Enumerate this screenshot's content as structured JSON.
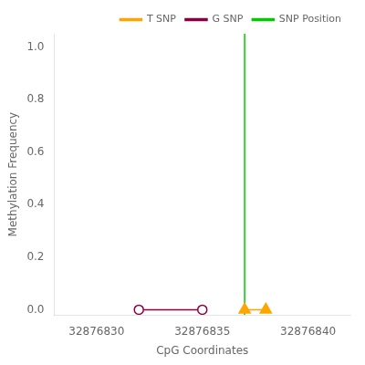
{
  "chart_data": {
    "type": "line",
    "xlabel": "CpG Coordinates",
    "ylabel": "Methylation Frequency",
    "xlim": [
      32876828,
      32876842
    ],
    "ylim": [
      -0.02,
      1.05
    ],
    "xticks": [
      32876830,
      32876835,
      32876840
    ],
    "yticks": [
      {
        "value": 0.0,
        "label": "0.0"
      },
      0.2,
      0.4,
      0.6,
      0.8,
      {
        "value": 1.0,
        "label": "1.0"
      }
    ],
    "grid": false,
    "legend": "upper right",
    "series": [
      {
        "name": "T SNP",
        "color": "#FFA500",
        "marker": "triangle",
        "x": [
          32876837,
          32876838
        ],
        "values": [
          0.0,
          0.0
        ]
      },
      {
        "name": "G SNP",
        "color": "#880044",
        "marker": "open circle",
        "x": [
          32876832,
          32876835
        ],
        "values": [
          0.0,
          0.0
        ]
      },
      {
        "name": "SNP Position",
        "type": "vline",
        "color": "#00CC00",
        "x": 32876837
      }
    ]
  }
}
